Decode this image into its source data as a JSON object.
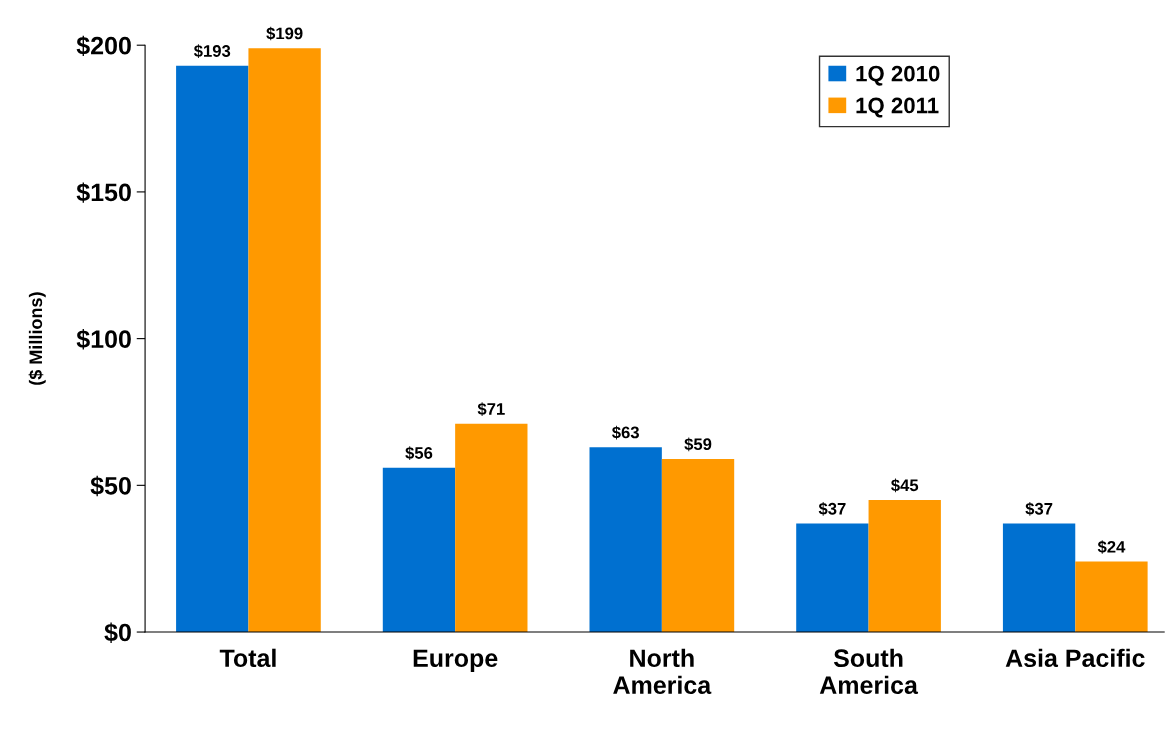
{
  "chart_data": {
    "type": "bar",
    "ylabel": "($ Millions)",
    "categories": [
      "Total",
      "Europe",
      "North\nAmerica",
      "South\nAmerica",
      "Asia Pacific"
    ],
    "series": [
      {
        "name": "1Q 2010",
        "color": "#0070d0",
        "values": [
          193,
          56,
          63,
          37,
          37
        ],
        "value_labels": [
          "$193",
          "$56",
          "$63",
          "$37",
          "$37"
        ]
      },
      {
        "name": "1Q 2011",
        "color": "#ff9900",
        "values": [
          199,
          71,
          59,
          45,
          24
        ],
        "value_labels": [
          "$199",
          "$71",
          "$59",
          "$45",
          "$24"
        ]
      }
    ],
    "ylim": [
      0,
      200
    ],
    "yticks": [
      {
        "value": 0,
        "label": "$0"
      },
      {
        "value": 50,
        "label": "$50"
      },
      {
        "value": 100,
        "label": "$100"
      },
      {
        "value": 150,
        "label": "$150"
      },
      {
        "value": 200,
        "label": "$200"
      }
    ],
    "grid": false,
    "legend": "top right"
  }
}
